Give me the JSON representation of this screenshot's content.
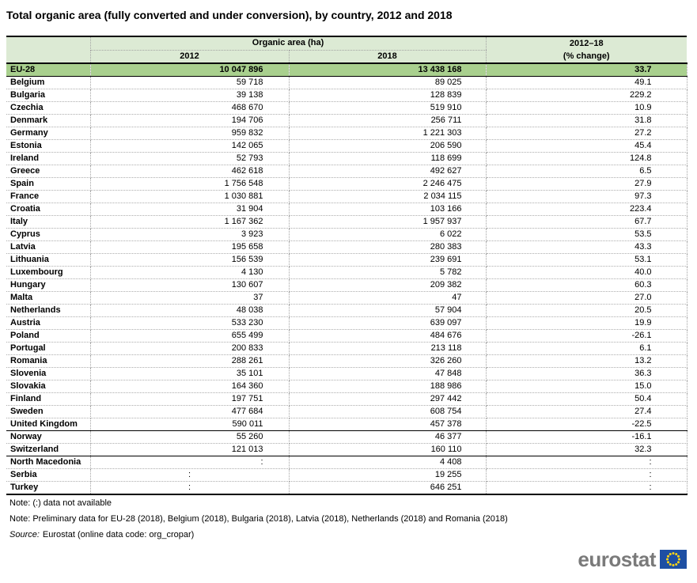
{
  "title": "Total organic area (fully converted and under conversion), by country, 2012 and 2018",
  "colors": {
    "header_bg": "#dcead4",
    "eu28_bg": "#a9d08e",
    "dotted": "#a3a3a3",
    "line": "#000000",
    "logo_gray": "#7a7a7a",
    "flag_blue": "#1e4fa3",
    "star_yellow": "#ffd617"
  },
  "chart_data": {
    "type": "table",
    "title": "Total organic area (fully converted and under conversion), by country, 2012 and 2018",
    "group_header": "Organic area (ha)",
    "columns": [
      "",
      "2012",
      "2018",
      "2012–18 (% change)"
    ],
    "header": {
      "group": "Organic area (ha)",
      "col2012": "2012",
      "col2018": "2018",
      "change_top": "2012–18",
      "change_bottom": "(% change)"
    },
    "rows": [
      {
        "country": "EU-28",
        "v2012": "10 047 896",
        "v2018": "13 438 168",
        "change": "33.7",
        "highlight": true
      },
      {
        "country": "Belgium",
        "v2012": "59 718",
        "v2018": "89 025",
        "change": "49.1"
      },
      {
        "country": "Bulgaria",
        "v2012": "39 138",
        "v2018": "128 839",
        "change": "229.2"
      },
      {
        "country": "Czechia",
        "v2012": "468 670",
        "v2018": "519 910",
        "change": "10.9"
      },
      {
        "country": "Denmark",
        "v2012": "194 706",
        "v2018": "256 711",
        "change": "31.8"
      },
      {
        "country": "Germany",
        "v2012": "959 832",
        "v2018": "1 221 303",
        "change": "27.2"
      },
      {
        "country": "Estonia",
        "v2012": "142 065",
        "v2018": "206 590",
        "change": "45.4"
      },
      {
        "country": "Ireland",
        "v2012": "52 793",
        "v2018": "118 699",
        "change": "124.8"
      },
      {
        "country": "Greece",
        "v2012": "462 618",
        "v2018": "492 627",
        "change": "6.5"
      },
      {
        "country": "Spain",
        "v2012": "1 756 548",
        "v2018": "2 246 475",
        "change": "27.9"
      },
      {
        "country": "France",
        "v2012": "1 030 881",
        "v2018": "2 034 115",
        "change": "97.3"
      },
      {
        "country": "Croatia",
        "v2012": "31 904",
        "v2018": "103 166",
        "change": "223.4"
      },
      {
        "country": "Italy",
        "v2012": "1 167 362",
        "v2018": "1 957 937",
        "change": "67.7"
      },
      {
        "country": "Cyprus",
        "v2012": "3 923",
        "v2018": "6 022",
        "change": "53.5"
      },
      {
        "country": "Latvia",
        "v2012": "195 658",
        "v2018": "280 383",
        "change": "43.3"
      },
      {
        "country": "Lithuania",
        "v2012": "156 539",
        "v2018": "239 691",
        "change": "53.1"
      },
      {
        "country": "Luxembourg",
        "v2012": "4 130",
        "v2018": "5 782",
        "change": "40.0"
      },
      {
        "country": "Hungary",
        "v2012": "130 607",
        "v2018": "209 382",
        "change": "60.3"
      },
      {
        "country": "Malta",
        "v2012": "37",
        "v2018": "47",
        "change": "27.0"
      },
      {
        "country": "Netherlands",
        "v2012": "48 038",
        "v2018": "57 904",
        "change": "20.5"
      },
      {
        "country": "Austria",
        "v2012": "533 230",
        "v2018": "639 097",
        "change": "19.9"
      },
      {
        "country": "Poland",
        "v2012": "655 499",
        "v2018": "484 676",
        "change": "-26.1"
      },
      {
        "country": "Portugal",
        "v2012": "200 833",
        "v2018": "213 118",
        "change": "6.1"
      },
      {
        "country": "Romania",
        "v2012": "288 261",
        "v2018": "326 260",
        "change": "13.2"
      },
      {
        "country": "Slovenia",
        "v2012": "35 101",
        "v2018": "47 848",
        "change": "36.3"
      },
      {
        "country": "Slovakia",
        "v2012": "164 360",
        "v2018": "188 986",
        "change": "15.0"
      },
      {
        "country": "Finland",
        "v2012": "197 751",
        "v2018": "297 442",
        "change": "50.4"
      },
      {
        "country": "Sweden",
        "v2012": "477 684",
        "v2018": "608 754",
        "change": "27.4"
      },
      {
        "country": "United Kingdom",
        "v2012": "590 011",
        "v2018": "457 378",
        "change": "-22.5",
        "sep_after": true
      },
      {
        "country": "Norway",
        "v2012": "55 260",
        "v2018": "46 377",
        "change": "-16.1"
      },
      {
        "country": "Switzerland",
        "v2012": "121 013",
        "v2018": "160 110",
        "change": "32.3",
        "sep_after": true
      },
      {
        "country": "North Macedonia",
        "v2012": ":",
        "v2018": "4 408",
        "change": ":"
      },
      {
        "country": "Serbia",
        "v2012": ":",
        "v2018": "19 255",
        "change": ":",
        "center_2012": true
      },
      {
        "country": "Turkey",
        "v2012": ":",
        "v2018": "646 251",
        "change": ":",
        "center_2012": true
      }
    ]
  },
  "notes": {
    "note1": "Note: (:) data not available",
    "note2": "Note: Preliminary data for EU-28 (2018), Belgium (2018), Bulgaria (2018), Latvia (2018), Netherlands (2018) and Romania (2018)",
    "source_label": "Source:",
    "source_text": "Eurostat (online data code: org_cropar)"
  },
  "logo": {
    "text": "eurostat"
  }
}
